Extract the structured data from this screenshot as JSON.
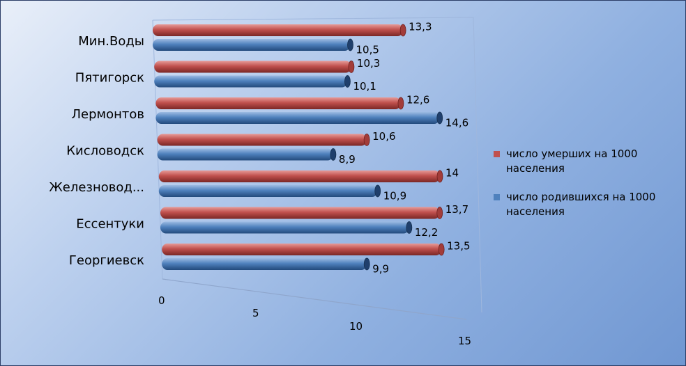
{
  "chart_data": {
    "type": "bar",
    "orientation": "horizontal",
    "categories": [
      "Мин.Воды",
      "Пятигорск",
      "Лермонтов",
      "Кисловодск",
      "Железновод...",
      "Ессентуки",
      "Георгиевск"
    ],
    "series": [
      {
        "name": "число умерших на 1000 населения",
        "values": [
          13.3,
          10.3,
          12.6,
          10.6,
          14,
          13.7,
          13.5
        ],
        "value_labels": [
          "13,3",
          "10,3",
          "12,6",
          "10,6",
          "14",
          "13,7",
          "13,5"
        ],
        "color": "#c0504d"
      },
      {
        "name": "число родившихся на 1000 населения",
        "values": [
          10.5,
          10.1,
          14.6,
          8.9,
          10.9,
          12.2,
          9.9
        ],
        "value_labels": [
          "10,5",
          "10,1",
          "14,6",
          "8,9",
          "10,9",
          "12,2",
          "9,9"
        ],
        "color": "#4f81bd"
      }
    ],
    "xlim": [
      0,
      15
    ],
    "xticks": [
      "0",
      "5",
      "10",
      "15"
    ],
    "legend_position": "right",
    "grid": false
  },
  "legend": {
    "items": [
      {
        "label": "число умерших на 1000 населения",
        "color": "#c0504d"
      },
      {
        "label": "число родившихся на 1000 населения",
        "color": "#4f81bd"
      }
    ]
  }
}
